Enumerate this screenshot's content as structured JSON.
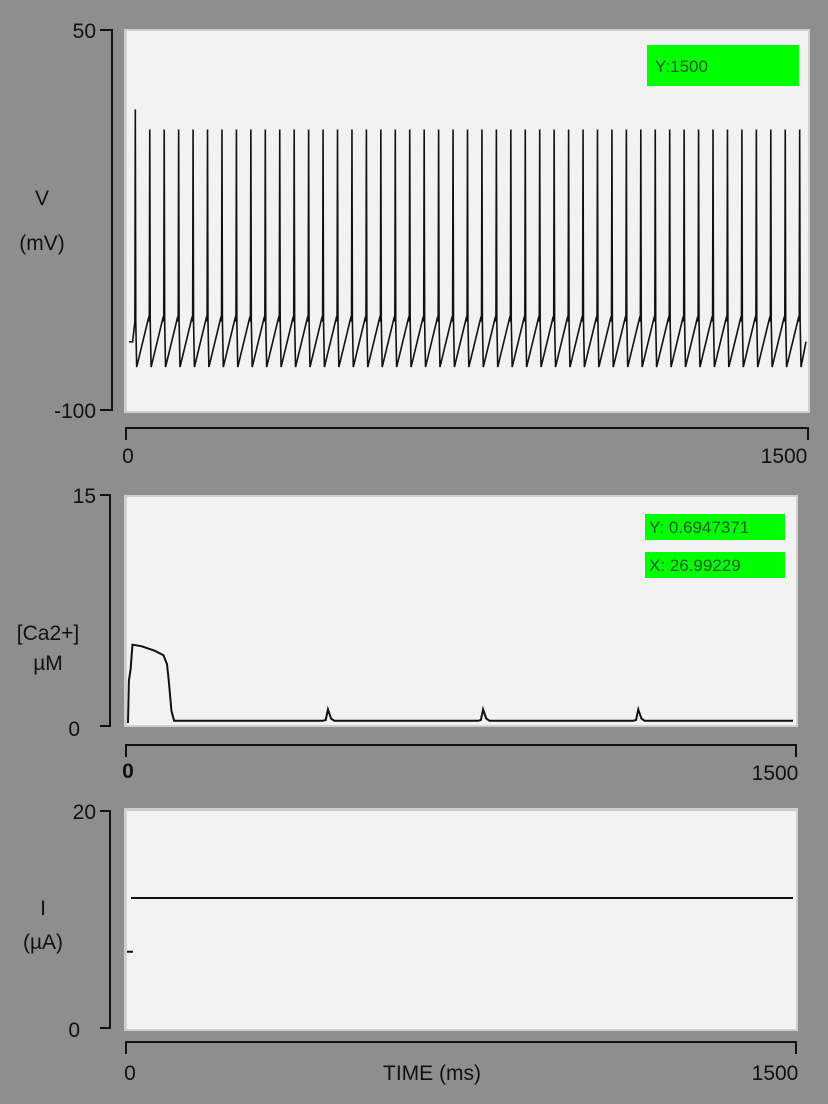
{
  "colors": {
    "background": "#8e8e8e",
    "plot_bg": "#f2f2f2",
    "readout_bg": "#00ff00",
    "trace": "#111111"
  },
  "chart_data": [
    {
      "type": "line",
      "ylabel_line1": "V",
      "ylabel_line2": "(mV)",
      "ylim": [
        -100,
        50
      ],
      "xlim": [
        0,
        1500
      ],
      "ytick_labels": [
        "50",
        "-100"
      ],
      "xtick_labels": [
        "0",
        "1500"
      ],
      "readouts": [
        "Y:1500"
      ],
      "series": [
        {
          "rest_mV": -73,
          "peak_mV": 11,
          "first_peak_mV": 19,
          "trough_mV": -83,
          "threshold_mV": -65,
          "spike_times_ms": [
            14,
            46,
            78,
            110,
            142,
            174,
            206,
            238,
            270,
            302,
            334,
            366,
            398,
            430,
            462,
            494,
            526,
            558,
            590,
            622,
            654,
            686,
            718,
            750,
            782,
            814,
            846,
            878,
            910,
            942,
            974,
            1006,
            1038,
            1070,
            1102,
            1134,
            1166,
            1198,
            1230,
            1262,
            1294,
            1326,
            1358,
            1390,
            1422,
            1454,
            1486
          ]
        }
      ]
    },
    {
      "type": "line",
      "ylabel_line1": "[Ca2+]",
      "ylabel_line2": "µM",
      "ylim": [
        0,
        15
      ],
      "xlim": [
        0,
        1500
      ],
      "ytick_labels": [
        "15",
        "0"
      ],
      "xtick_labels": [
        "0",
        "1500"
      ],
      "readouts": [
        "Y: 0.6947371",
        "X: 26.99229"
      ],
      "series": [
        {
          "x": [
            0,
            2,
            6,
            10,
            30,
            60,
            80,
            88,
            92,
            98,
            104,
            440,
            446,
            451,
            458,
            465,
            790,
            796,
            801,
            808,
            815,
            1140,
            1146,
            1151,
            1158,
            1165,
            1500
          ],
          "y": [
            0,
            2.8,
            3.6,
            5.2,
            5.1,
            4.8,
            4.5,
            3.9,
            2.8,
            0.8,
            0.15,
            0.15,
            0.2,
            0.9,
            0.3,
            0.15,
            0.15,
            0.2,
            0.9,
            0.3,
            0.15,
            0.15,
            0.2,
            0.9,
            0.3,
            0.15,
            0.15
          ]
        }
      ]
    },
    {
      "type": "line",
      "ylabel_line1": "I",
      "ylabel_line2": "(µA)",
      "xlabel": "TIME (ms)",
      "ylim": [
        0,
        20
      ],
      "xlim": [
        0,
        1500
      ],
      "ytick_labels": [
        "20",
        "0"
      ],
      "xtick_labels": [
        "0",
        "1500"
      ],
      "series": [
        {
          "x": [
            0,
            1500
          ],
          "y": [
            12,
            12
          ],
          "initial_mark": 7
        }
      ]
    }
  ]
}
